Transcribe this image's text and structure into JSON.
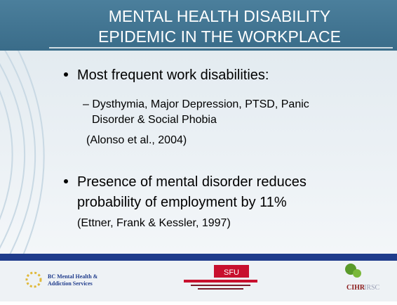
{
  "title": [
    "MENTAL HEALTH DISABILITY",
    "EPIDEMIC IN THE WORKPLACE"
  ],
  "bullets": [
    {
      "text": "Most frequent work disabilities:",
      "sub": [
        "– Dysthymia, Major Depression, PTSD, Panic",
        "Disorder & Social Phobia"
      ],
      "citation": "(Alonso et al., 2004)"
    },
    {
      "lines": [
        "Presence of mental disorder reduces",
        "probability of employment by 11%"
      ],
      "citation": "(Ettner, Frank & Kessler, 1997)"
    }
  ],
  "footer": {
    "bcmhas": [
      "BC Mental Health &",
      "Addiction Services"
    ],
    "sfu": "SFU",
    "cihr": [
      "CIHR",
      "IRSC"
    ]
  }
}
